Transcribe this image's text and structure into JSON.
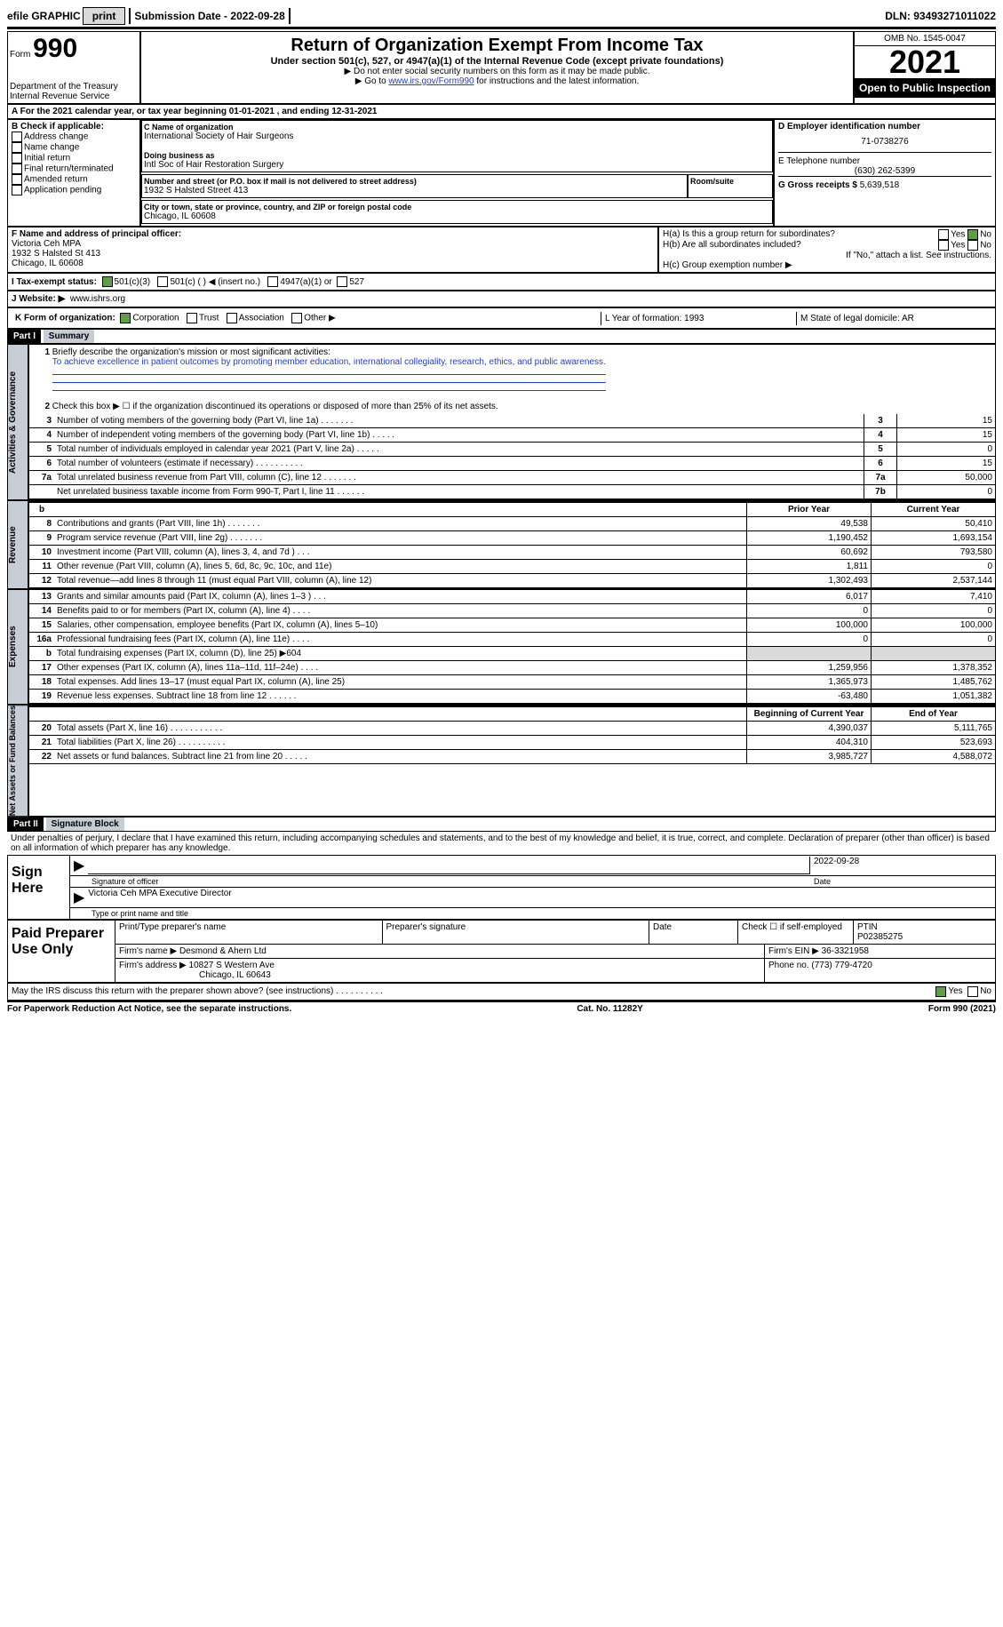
{
  "topbar": {
    "efile": "efile GRAPHIC",
    "print": "print",
    "submission_label": "Submission Date -",
    "submission_date": "2022-09-28",
    "dln_label": "DLN:",
    "dln": "93493271011022"
  },
  "header": {
    "form_word": "Form",
    "form_num": "990",
    "dept": "Department of the Treasury",
    "irs": "Internal Revenue Service",
    "title": "Return of Organization Exempt From Income Tax",
    "subtitle": "Under section 501(c), 527, or 4947(a)(1) of the Internal Revenue Code (except private foundations)",
    "note1": "Do not enter social security numbers on this form as it may be made public.",
    "note2_pre": "Go to",
    "note2_link": "www.irs.gov/Form990",
    "note2_post": "for instructions and the latest information.",
    "omb": "OMB No. 1545-0047",
    "year": "2021",
    "open": "Open to Public Inspection"
  },
  "lineA": "A For the 2021 calendar year, or tax year beginning 01-01-2021    , and ending 12-31-2021",
  "boxB": {
    "label": "B Check if applicable:",
    "items": [
      "Address change",
      "Name change",
      "Initial return",
      "Final return/terminated",
      "Amended return",
      "Application pending"
    ]
  },
  "boxC": {
    "c_label": "C Name of organization",
    "c_name": "International Society of Hair Surgeons",
    "dba_label": "Doing business as",
    "dba": "Intl Soc of Hair Restoration Surgery",
    "addr_label": "Number and street (or P.O. box if mail is not delivered to street address)",
    "addr": "1932 S Halsted Street 413",
    "room_label": "Room/suite",
    "city_label": "City or town, state or province, country, and ZIP or foreign postal code",
    "city": "Chicago, IL  60608"
  },
  "boxD": {
    "label": "D Employer identification number",
    "value": "71-0738276"
  },
  "boxE": {
    "label": "E Telephone number",
    "value": "(630) 262-5399"
  },
  "boxG": {
    "label": "G Gross receipts $",
    "value": "5,639,518"
  },
  "boxF": {
    "label": "F Name and address of principal officer:",
    "name": "Victoria Ceh MPA",
    "addr1": "1932 S Halsted St 413",
    "addr2": "Chicago, IL  60608"
  },
  "boxH": {
    "a": "H(a)  Is this a group return for subordinates?",
    "b": "H(b)  Are all subordinates included?",
    "b_note": "If \"No,\" attach a list. See instructions.",
    "c": "H(c)  Group exemption number ▶",
    "yes": "Yes",
    "no": "No"
  },
  "taxStatus": {
    "label": "I  Tax-exempt status:",
    "opts": [
      "501(c)(3)",
      "501(c) (  ) ◀ (insert no.)",
      "4947(a)(1) or",
      "527"
    ]
  },
  "website": {
    "label": "J  Website: ▶",
    "value": "www.ishrs.org"
  },
  "rowK": {
    "label": "K Form of organization:",
    "opts": [
      "Corporation",
      "Trust",
      "Association",
      "Other ▶"
    ],
    "L": "L Year of formation: 1993",
    "M": "M State of legal domicile: AR"
  },
  "part1": {
    "hdr": "Part I",
    "title": "Summary"
  },
  "summary_activities": {
    "line1_label": "Briefly describe the organization's mission or most significant activities:",
    "line1_text": "To achieve excellence in patient outcomes by promoting member education, international collegiality, research, ethics, and public awareness.",
    "line2": "Check this box ▶ ☐ if the organization discontinued its operations or disposed of more than 25% of its net assets.",
    "rows": [
      {
        "n": "3",
        "t": "Number of voting members of the governing body (Part VI, line 1a)   .   .   .   .   .   .   .",
        "k": "3",
        "v": "15"
      },
      {
        "n": "4",
        "t": "Number of independent voting members of the governing body (Part VI, line 1b)   .   .   .   .   .",
        "k": "4",
        "v": "15"
      },
      {
        "n": "5",
        "t": "Total number of individuals employed in calendar year 2021 (Part V, line 2a)   .   .   .   .   .",
        "k": "5",
        "v": "0"
      },
      {
        "n": "6",
        "t": "Total number of volunteers (estimate if necessary)   .   .   .   .   .   .   .   .   .   .",
        "k": "6",
        "v": "15"
      },
      {
        "n": "7a",
        "t": "Total unrelated business revenue from Part VIII, column (C), line 12   .   .   .   .   .   .   .",
        "k": "7a",
        "v": "50,000"
      },
      {
        "n": "",
        "t": "Net unrelated business taxable income from Form 990-T, Part I, line 11   .   .   .   .   .   .",
        "k": "7b",
        "v": "0"
      }
    ]
  },
  "twocol_hdr": {
    "prior": "Prior Year",
    "current": "Current Year"
  },
  "revenue_rows": [
    {
      "n": "8",
      "t": "Contributions and grants (Part VIII, line 1h)   .   .   .   .   .   .   .",
      "p": "49,538",
      "c": "50,410"
    },
    {
      "n": "9",
      "t": "Program service revenue (Part VIII, line 2g)   .   .   .   .   .   .   .",
      "p": "1,190,452",
      "c": "1,693,154"
    },
    {
      "n": "10",
      "t": "Investment income (Part VIII, column (A), lines 3, 4, and 7d )   .   .   .",
      "p": "60,692",
      "c": "793,580"
    },
    {
      "n": "11",
      "t": "Other revenue (Part VIII, column (A), lines 5, 6d, 8c, 9c, 10c, and 11e)",
      "p": "1,811",
      "c": "0"
    },
    {
      "n": "12",
      "t": "Total revenue—add lines 8 through 11 (must equal Part VIII, column (A), line 12)",
      "p": "1,302,493",
      "c": "2,537,144"
    }
  ],
  "expense_rows": [
    {
      "n": "13",
      "t": "Grants and similar amounts paid (Part IX, column (A), lines 1–3 )   .   .   .",
      "p": "6,017",
      "c": "7,410"
    },
    {
      "n": "14",
      "t": "Benefits paid to or for members (Part IX, column (A), line 4)   .   .   .   .",
      "p": "0",
      "c": "0"
    },
    {
      "n": "15",
      "t": "Salaries, other compensation, employee benefits (Part IX, column (A), lines 5–10)",
      "p": "100,000",
      "c": "100,000"
    },
    {
      "n": "16a",
      "t": "Professional fundraising fees (Part IX, column (A), line 11e)   .   .   .   .",
      "p": "0",
      "c": "0"
    },
    {
      "n": "b",
      "t": "Total fundraising expenses (Part IX, column (D), line 25) ▶604",
      "p": "",
      "c": "",
      "grey": true
    },
    {
      "n": "17",
      "t": "Other expenses (Part IX, column (A), lines 11a–11d, 11f–24e)   .   .   .   .",
      "p": "1,259,956",
      "c": "1,378,352"
    },
    {
      "n": "18",
      "t": "Total expenses. Add lines 13–17 (must equal Part IX, column (A), line 25)",
      "p": "1,365,973",
      "c": "1,485,762"
    },
    {
      "n": "19",
      "t": "Revenue less expenses. Subtract line 18 from line 12   .   .   .   .   .   .",
      "p": "-63,480",
      "c": "1,051,382"
    }
  ],
  "net_hdr": {
    "begin": "Beginning of Current Year",
    "end": "End of Year"
  },
  "net_rows": [
    {
      "n": "20",
      "t": "Total assets (Part X, line 16)   .   .   .   .   .   .   .   .   .   .   .",
      "p": "4,390,037",
      "c": "5,111,765"
    },
    {
      "n": "21",
      "t": "Total liabilities (Part X, line 26)   .   .   .   .   .   .   .   .   .   .",
      "p": "404,310",
      "c": "523,693"
    },
    {
      "n": "22",
      "t": "Net assets or fund balances. Subtract line 21 from line 20   .   .   .   .   .",
      "p": "3,985,727",
      "c": "4,588,072"
    }
  ],
  "part2": {
    "hdr": "Part II",
    "title": "Signature Block"
  },
  "penalties": "Under penalties of perjury, I declare that I have examined this return, including accompanying schedules and statements, and to the best of my knowledge and belief, it is true, correct, and complete. Declaration of preparer (other than officer) is based on all information of which preparer has any knowledge.",
  "sign": {
    "here": "Sign Here",
    "sig_label": "Signature of officer",
    "date_label": "Date",
    "date": "2022-09-28",
    "name": "Victoria Ceh MPA  Executive Director",
    "name_label": "Type or print name and title"
  },
  "paid": {
    "left": "Paid Preparer Use Only",
    "r1": {
      "a": "Print/Type preparer's name",
      "b": "Preparer's signature",
      "c": "Date",
      "d": "Check ☐ if self-employed",
      "e_label": "PTIN",
      "e": "P02385275"
    },
    "r2": {
      "a_label": "Firm's name    ▶",
      "a": "Desmond & Ahern Ltd",
      "b_label": "Firm's EIN ▶",
      "b": "36-3321958"
    },
    "r3": {
      "a_label": "Firm's address ▶",
      "a": "10827 S Western Ave",
      "a2": "Chicago, IL  60643",
      "b_label": "Phone no.",
      "b": "(773) 779-4720"
    }
  },
  "discuss": {
    "text": "May the IRS discuss this return with the preparer shown above? (see instructions)   .   .   .   .   .   .   .   .   .   .",
    "yes": "Yes",
    "no": "No"
  },
  "footer": {
    "left": "For Paperwork Reduction Act Notice, see the separate instructions.",
    "mid": "Cat. No. 11282Y",
    "right": "Form 990 (2021)"
  },
  "tabs": {
    "ag": "Activities & Governance",
    "rev": "Revenue",
    "exp": "Expenses",
    "net": "Net Assets or Fund Balances"
  }
}
